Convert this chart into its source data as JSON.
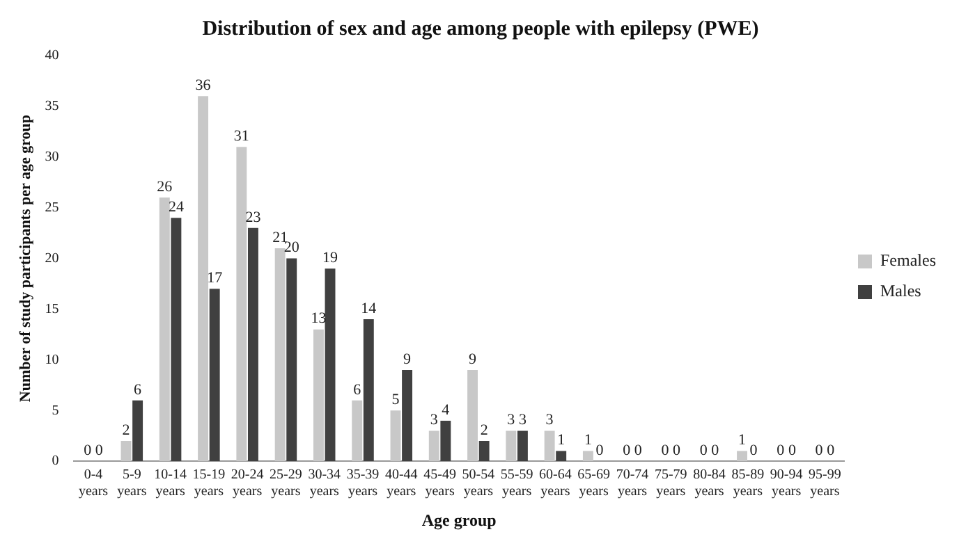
{
  "chart_data": {
    "type": "bar",
    "title": "Distribution of sex and age among people with epilepsy (PWE)",
    "xlabel": "Age group",
    "ylabel": "Number of study participants per age group",
    "categories": [
      "0-4 years",
      "5-9 years",
      "10-14 years",
      "15-19 years",
      "20-24 years",
      "25-29 years",
      "30-34 years",
      "35-39 years",
      "40-44 years",
      "45-49 years",
      "50-54 years",
      "55-59 years",
      "60-64 years",
      "65-69 years",
      "70-74 years",
      "75-79 years",
      "80-84 years",
      "85-89 years",
      "90-94 years",
      "95-99 years"
    ],
    "series": [
      {
        "name": "Females",
        "color": "#c8c8c8",
        "values": [
          0,
          2,
          26,
          36,
          31,
          21,
          13,
          6,
          5,
          3,
          9,
          3,
          3,
          1,
          0,
          0,
          0,
          1,
          0,
          0
        ]
      },
      {
        "name": "Males",
        "color": "#404040",
        "values": [
          0,
          6,
          24,
          17,
          23,
          20,
          19,
          14,
          9,
          4,
          2,
          3,
          1,
          0,
          0,
          0,
          0,
          0,
          0,
          0
        ]
      }
    ],
    "ylim": [
      0,
      40
    ],
    "yticks": [
      0,
      5,
      10,
      15,
      20,
      25,
      30,
      35,
      40
    ],
    "grid": false,
    "legend": "right",
    "data_labels": true
  }
}
